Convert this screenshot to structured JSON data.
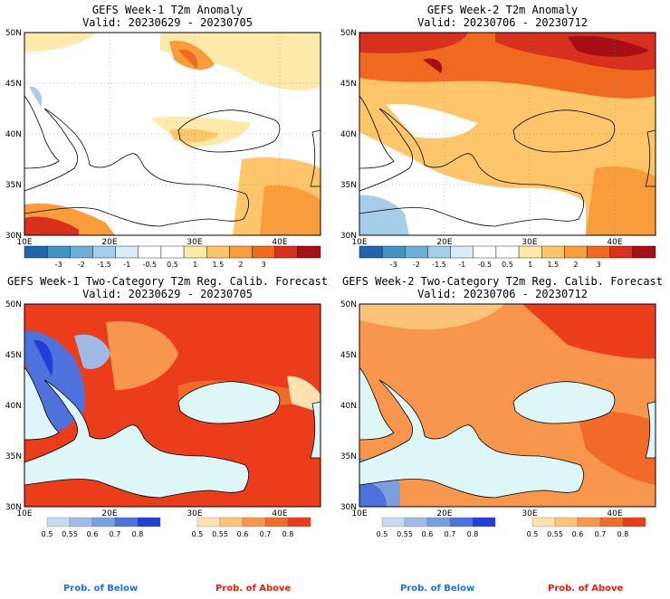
{
  "panels": [
    {
      "title": "GEFS Week-1 T2m Anomaly",
      "valid": "Valid: 20230629 - 20230705"
    },
    {
      "title": "GEFS Week-2 T2m Anomaly",
      "valid": "Valid: 20230706 - 20230712"
    },
    {
      "title": "GEFS Week-1 Two-Category T2m Reg. Calib. Forecast",
      "valid": "Valid: 20230629 - 20230705"
    },
    {
      "title": "GEFS Week-2 Two-Category T2m Reg. Calib. Forecast",
      "valid": "Valid: 20230706 - 20230712"
    }
  ],
  "axes": {
    "lat_labels": [
      "50N",
      "45N",
      "40N",
      "35N",
      "30N"
    ],
    "lon_labels": [
      "10E",
      "20E",
      "30E",
      "40E"
    ]
  },
  "anomaly_colorbar": {
    "labels": [
      "-3",
      "-2",
      "-1.5",
      "-1",
      "-0.5",
      "0.5",
      "1",
      "1.5",
      "2",
      "3"
    ],
    "colors": [
      "#2166ac",
      "#4393c3",
      "#6baed6",
      "#a6cde9",
      "#d8ecf8",
      "#ffffff",
      "#ffffff",
      "#fde9a9",
      "#fdc66b",
      "#f99d3c",
      "#ef6a1f",
      "#d7301f",
      "#a50f15"
    ]
  },
  "prob_colorbars": {
    "below": {
      "labels": [
        "0.5",
        "0.55",
        "0.6",
        "0.7",
        "0.8"
      ],
      "colors": [
        "#c6dbef",
        "#9ebae6",
        "#7a9ee0",
        "#4f71dc",
        "#1f3fd8"
      ]
    },
    "above": {
      "labels": [
        "0.5",
        "0.55",
        "0.6",
        "0.7",
        "0.8"
      ],
      "colors": [
        "#fde2b0",
        "#fbc47a",
        "#f7964c",
        "#f26a2a",
        "#ec3d1a"
      ]
    }
  },
  "footer": {
    "below_label": "Prob. of Below",
    "above_label": "Prob. of Above",
    "below_color": "#1e6ef0",
    "above_color": "#e8200c"
  },
  "map_colors": {
    "sea": "#ddf6f8",
    "border": "#000000"
  }
}
